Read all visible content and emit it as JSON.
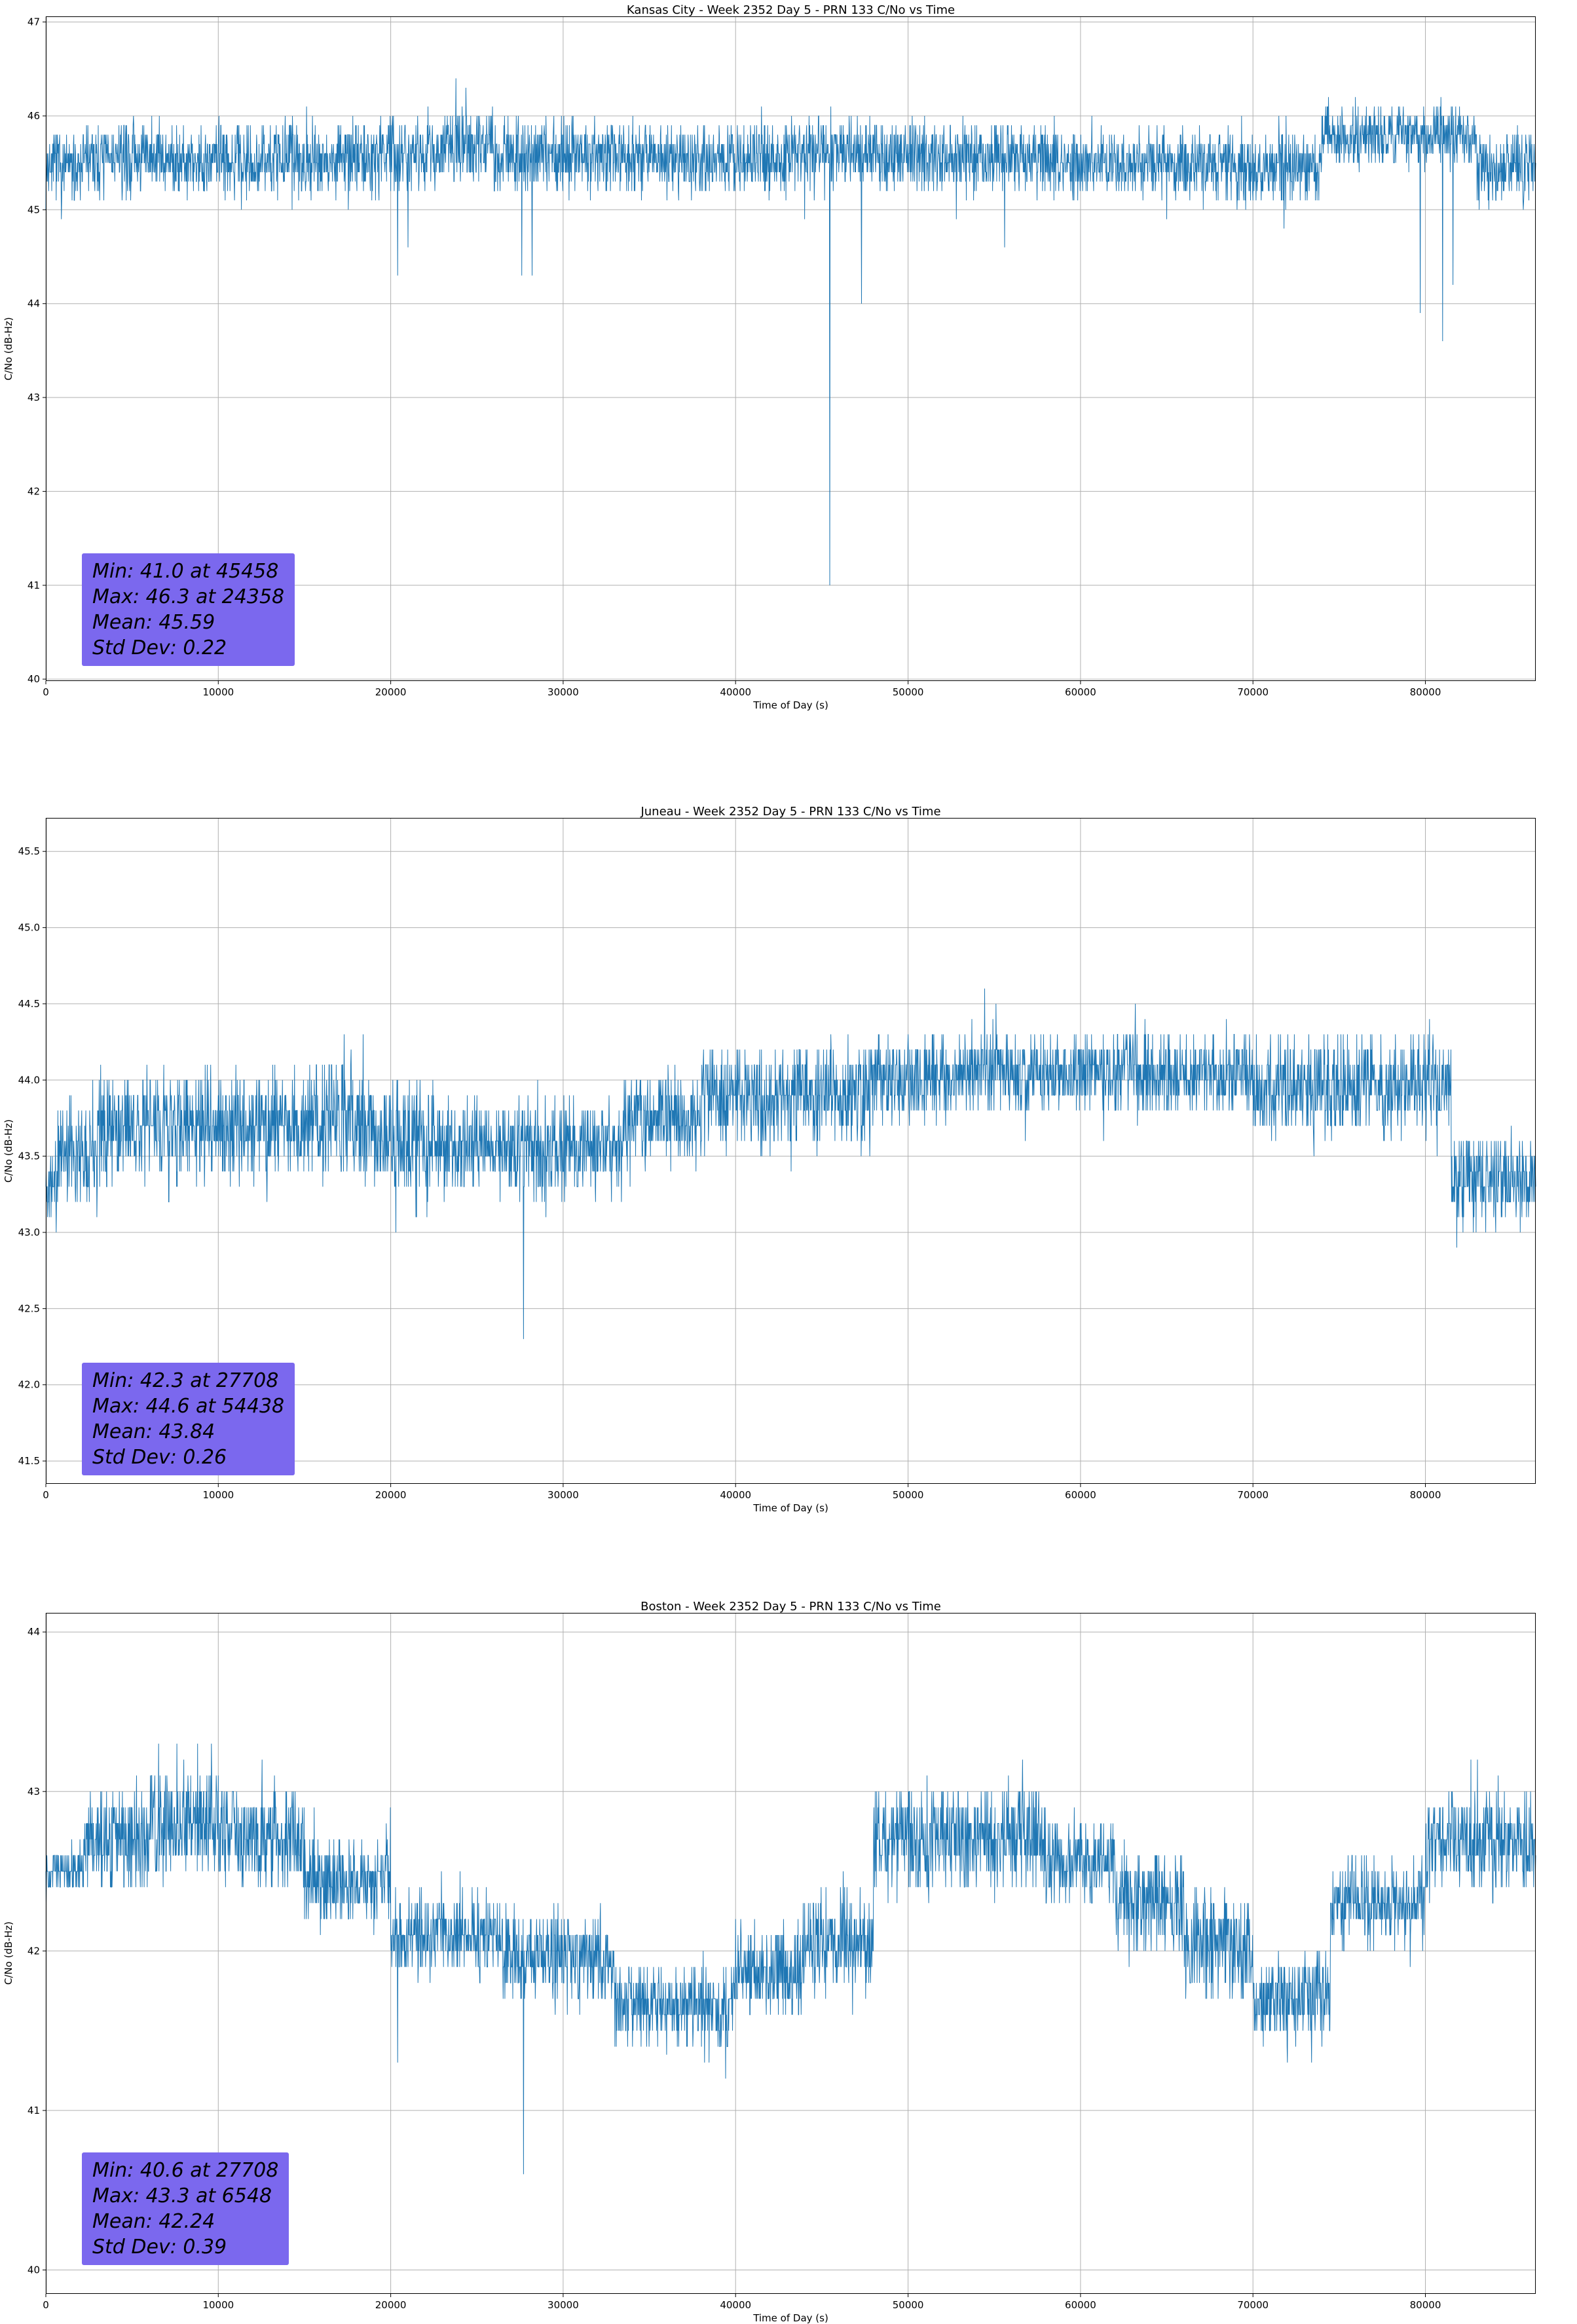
{
  "colors": {
    "line": "#1f77b4",
    "grid": "#b0b0b0",
    "spine": "#000000",
    "stats_bg": "#7B68EE",
    "stats_text": "#000000",
    "background": "#ffffff"
  },
  "chart_data": [
    {
      "type": "line",
      "title": "Kansas City - Week 2352 Day 5 - PRN 133 C/No vs Time",
      "xlabel": "Time of Day (s)",
      "ylabel": "C/No (dB-Hz)",
      "xlim": [
        0,
        86400
      ],
      "ylim": [
        39.98,
        47.06
      ],
      "xticks": [
        0,
        10000,
        20000,
        30000,
        40000,
        50000,
        60000,
        70000,
        80000
      ],
      "xtick_labels": [
        "0",
        "10000",
        "20000",
        "30000",
        "40000",
        "50000",
        "60000",
        "70000",
        "80000"
      ],
      "yticks": [
        40,
        41,
        42,
        43,
        44,
        45,
        46,
        47
      ],
      "ytick_labels": [
        "40",
        "41",
        "42",
        "43",
        "44",
        "45",
        "46",
        "47"
      ],
      "grid": true,
      "legend": "none",
      "stats": {
        "min": "Min: 41.0 at 45458",
        "max": "Max: 46.3 at 24358",
        "mean": "Mean: 45.59",
        "std": "Std Dev: 0.22"
      },
      "summary": {
        "min_value": 41.0,
        "min_time": 45458,
        "max_value": 46.3,
        "max_time": 24358,
        "mean": 45.59,
        "std_dev": 0.22
      },
      "seed": 7,
      "sample_step": 20,
      "segments": [
        [
          0,
          1800,
          45.45,
          0.4
        ],
        [
          1800,
          19000,
          45.55,
          0.42
        ],
        [
          19000,
          23000,
          45.6,
          0.45
        ],
        [
          23000,
          26000,
          45.7,
          0.45
        ],
        [
          26000,
          33000,
          45.6,
          0.45
        ],
        [
          33000,
          43000,
          45.55,
          0.42
        ],
        [
          43000,
          52000,
          45.6,
          0.42
        ],
        [
          52000,
          58000,
          45.55,
          0.42
        ],
        [
          58000,
          66000,
          45.5,
          0.4
        ],
        [
          66000,
          74000,
          45.45,
          0.42
        ],
        [
          74000,
          83000,
          45.8,
          0.35
        ],
        [
          83000,
          86401,
          45.45,
          0.4
        ]
      ],
      "spikes": [
        [
          900,
          44.9
        ],
        [
          20400,
          44.3
        ],
        [
          21000,
          44.6
        ],
        [
          24358,
          46.3
        ],
        [
          27600,
          44.3
        ],
        [
          28200,
          44.3
        ],
        [
          44000,
          44.9
        ],
        [
          45458,
          41.0
        ],
        [
          47300,
          44.0
        ],
        [
          55600,
          44.6
        ],
        [
          65000,
          44.9
        ],
        [
          79700,
          43.9
        ],
        [
          81000,
          43.6
        ],
        [
          81600,
          44.2
        ]
      ]
    },
    {
      "type": "line",
      "title": "Juneau - Week 2352 Day 5 - PRN 133 C/No vs Time",
      "xlabel": "Time of Day (s)",
      "ylabel": "C/No (dB-Hz)",
      "xlim": [
        0,
        86400
      ],
      "ylim": [
        41.35,
        45.72
      ],
      "xticks": [
        0,
        10000,
        20000,
        30000,
        40000,
        50000,
        60000,
        70000,
        80000
      ],
      "xtick_labels": [
        "0",
        "10000",
        "20000",
        "30000",
        "40000",
        "50000",
        "60000",
        "70000",
        "80000"
      ],
      "yticks": [
        41.5,
        42.0,
        42.5,
        43.0,
        43.5,
        44.0,
        44.5,
        45.0,
        45.5
      ],
      "ytick_labels": [
        "41.5",
        "42.0",
        "42.5",
        "43.0",
        "43.5",
        "44.0",
        "44.5",
        "45.0",
        "45.5"
      ],
      "grid": true,
      "legend": "none",
      "stats": {
        "min": "Min: 42.3 at 27708",
        "max": "Max: 44.6 at 54438",
        "mean": "Mean: 43.84",
        "std": "Std Dev: 0.26"
      },
      "summary": {
        "min_value": 42.3,
        "min_time": 27708,
        "max_value": 44.6,
        "max_time": 54438,
        "mean": 43.84,
        "std_dev": 0.26
      },
      "seed": 11,
      "sample_step": 20,
      "segments": [
        [
          0,
          700,
          43.3,
          0.25
        ],
        [
          700,
          3000,
          43.55,
          0.35
        ],
        [
          3000,
          16000,
          43.7,
          0.38
        ],
        [
          16000,
          19000,
          43.75,
          0.45
        ],
        [
          19000,
          22500,
          43.6,
          0.4
        ],
        [
          22500,
          27000,
          43.55,
          0.32
        ],
        [
          27000,
          33500,
          43.55,
          0.35
        ],
        [
          33500,
          38000,
          43.75,
          0.35
        ],
        [
          38000,
          48000,
          43.9,
          0.38
        ],
        [
          48000,
          53000,
          44.0,
          0.32
        ],
        [
          53000,
          70000,
          44.05,
          0.3
        ],
        [
          70000,
          81500,
          43.95,
          0.35
        ],
        [
          81500,
          86401,
          43.35,
          0.3
        ]
      ],
      "spikes": [
        [
          600,
          43.0
        ],
        [
          17300,
          44.3
        ],
        [
          18400,
          44.3
        ],
        [
          20300,
          43.0
        ],
        [
          27708,
          42.3
        ],
        [
          29000,
          43.1
        ],
        [
          54438,
          44.6
        ],
        [
          55100,
          44.5
        ],
        [
          83500,
          43.0
        ],
        [
          85500,
          43.0
        ]
      ]
    },
    {
      "type": "line",
      "title": "Boston - Week 2352 Day 5 - PRN 133 C/No vs Time",
      "xlabel": "Time of Day (s)",
      "ylabel": "C/No (dB-Hz)",
      "xlim": [
        0,
        86400
      ],
      "ylim": [
        39.85,
        44.12
      ],
      "xticks": [
        0,
        10000,
        20000,
        30000,
        40000,
        50000,
        60000,
        70000,
        80000
      ],
      "xtick_labels": [
        "0",
        "10000",
        "20000",
        "30000",
        "40000",
        "50000",
        "60000",
        "70000",
        "80000"
      ],
      "yticks": [
        40,
        41,
        42,
        43,
        44
      ],
      "ytick_labels": [
        "40",
        "41",
        "42",
        "43",
        "44"
      ],
      "grid": true,
      "legend": "none",
      "stats": {
        "min": "Min: 40.6 at 27708",
        "max": "Max: 43.3 at 6548",
        "mean": "Mean: 42.24",
        "std": "Std Dev: 0.39"
      },
      "summary": {
        "min_value": 40.6,
        "min_time": 27708,
        "max_value": 43.3,
        "max_time": 6548,
        "mean": 42.24,
        "std_dev": 0.39
      },
      "seed": 13,
      "sample_step": 20,
      "segments": [
        [
          0,
          2200,
          42.5,
          0.15
        ],
        [
          2200,
          6000,
          42.7,
          0.35
        ],
        [
          6000,
          11000,
          42.8,
          0.35
        ],
        [
          11000,
          15000,
          42.7,
          0.35
        ],
        [
          15000,
          20000,
          42.45,
          0.3
        ],
        [
          20000,
          26500,
          42.1,
          0.28
        ],
        [
          26500,
          33000,
          41.95,
          0.3
        ],
        [
          33000,
          40000,
          41.65,
          0.28
        ],
        [
          40000,
          44000,
          41.85,
          0.3
        ],
        [
          44000,
          48000,
          42.05,
          0.35
        ],
        [
          48000,
          58000,
          42.7,
          0.35
        ],
        [
          58000,
          62000,
          42.55,
          0.3
        ],
        [
          62000,
          66000,
          42.3,
          0.35
        ],
        [
          66000,
          70000,
          42.05,
          0.35
        ],
        [
          70000,
          74500,
          41.7,
          0.3
        ],
        [
          74500,
          80000,
          42.3,
          0.32
        ],
        [
          80000,
          86401,
          42.7,
          0.35
        ]
      ],
      "spikes": [
        [
          6548,
          43.3
        ],
        [
          7600,
          43.3
        ],
        [
          8800,
          43.3
        ],
        [
          9600,
          43.3
        ],
        [
          20400,
          41.3
        ],
        [
          27708,
          40.6
        ],
        [
          36000,
          41.35
        ],
        [
          72000,
          41.3
        ]
      ]
    }
  ]
}
